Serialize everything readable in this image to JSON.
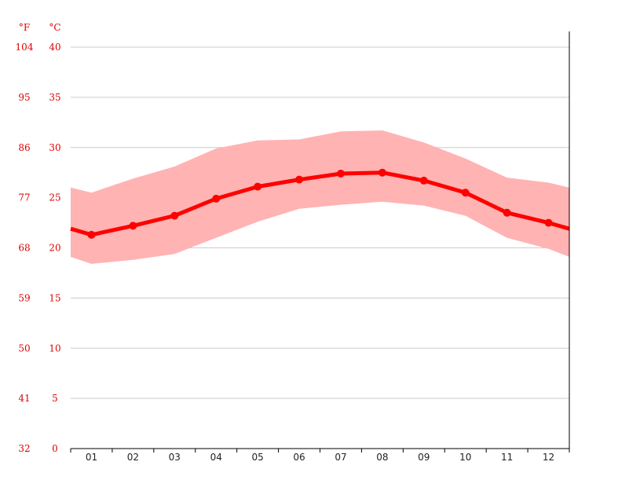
{
  "chart_data": {
    "type": "line",
    "units": {
      "f_label": "°F",
      "c_label": "°C"
    },
    "categories": [
      "01",
      "02",
      "03",
      "04",
      "05",
      "06",
      "07",
      "08",
      "09",
      "10",
      "11",
      "12"
    ],
    "y_ticks_c": [
      "40",
      "35",
      "30",
      "25",
      "20",
      "15",
      "10",
      "5",
      "0"
    ],
    "y_ticks_f": [
      "104",
      "95",
      "86",
      "77",
      "68",
      "59",
      "50",
      "41",
      "32"
    ],
    "ylim": [
      0,
      40
    ],
    "grid": true,
    "series": [
      {
        "values": [
          21.3,
          22.2,
          23.2,
          24.9,
          26.1,
          26.8,
          27.4,
          27.5,
          26.7,
          25.5,
          23.5,
          22.5
        ]
      }
    ],
    "band": {
      "x": [
        0,
        0.5,
        1.5,
        2.5,
        3.5,
        4.5,
        5.5,
        6.5,
        7.5,
        8.5,
        9.5,
        10.5,
        11.5,
        12
      ],
      "high": [
        26.0,
        25.5,
        26.9,
        28.1,
        29.9,
        30.7,
        30.8,
        31.6,
        31.7,
        30.5,
        28.9,
        27.0,
        26.5,
        26.0
      ],
      "low": [
        19.1,
        18.4,
        18.8,
        19.4,
        21.0,
        22.6,
        23.9,
        24.3,
        24.6,
        24.2,
        23.2,
        21.0,
        19.9,
        19.1
      ]
    },
    "colors": {
      "line": "#ff0000",
      "band": "#ffb3b3",
      "grid": "#cccccc",
      "tick_label": "#dd0000",
      "axis": "#000000"
    }
  }
}
